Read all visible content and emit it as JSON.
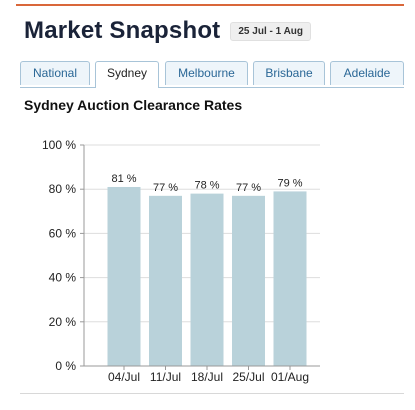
{
  "header": {
    "title": "Market Snapshot",
    "date_range": "25 Jul - 1 Aug"
  },
  "tabs": [
    {
      "label": "National",
      "active": false
    },
    {
      "label": "Sydney",
      "active": true
    },
    {
      "label": "Melbourne",
      "active": false
    },
    {
      "label": "Brisbane",
      "active": false
    },
    {
      "label": "Adelaide",
      "active": false
    }
  ],
  "section": {
    "title": "Sydney Auction Clearance Rates"
  },
  "colors": {
    "accent_rule": "#d9673a",
    "bar": "#b9d2da",
    "tab_text": "#2a6796"
  },
  "chart_data": {
    "type": "bar",
    "categories": [
      "04/Jul",
      "11/Jul",
      "18/Jul",
      "25/Jul",
      "01/Aug"
    ],
    "values": [
      81,
      77,
      78,
      77,
      79
    ],
    "value_labels": [
      "81 %",
      "77 %",
      "78 %",
      "77 %",
      "79 %"
    ],
    "y_ticks": [
      0,
      20,
      40,
      60,
      80,
      100
    ],
    "y_tick_labels": [
      "0 %",
      "20 %",
      "40 %",
      "60 %",
      "80 %",
      "100 %"
    ],
    "ylim": [
      0,
      100
    ],
    "grid": true,
    "legend": "none"
  }
}
